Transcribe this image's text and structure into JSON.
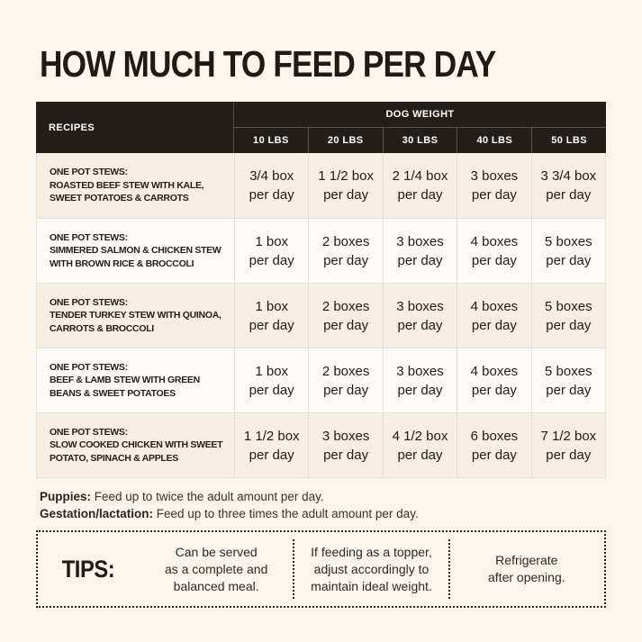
{
  "page": {
    "title": "HOW MUCH TO FEED PER DAY"
  },
  "table": {
    "recipes_header": "RECIPES",
    "dog_weight_header": "DOG WEIGHT",
    "weight_columns": [
      "10 LBS",
      "20 LBS",
      "30 LBS",
      "40 LBS",
      "50 LBS"
    ],
    "colors": {
      "header_bg": "#241d18",
      "alt_row_bg": "#f8eee2",
      "plain_row_bg": "#fdfcf9",
      "grid_line": "#e6e0d5",
      "page_bg": "#faf6ee"
    },
    "rows": [
      {
        "type_label": "ONE POT STEWS:",
        "name": "ROASTED BEEF STEW WITH KALE,\nSWEET POTATOES & CARROTS",
        "cells": [
          {
            "qty": "3/4 box",
            "freq": "per day"
          },
          {
            "qty": "1 1/2 box",
            "freq": "per day"
          },
          {
            "qty": "2 1/4 box",
            "freq": "per day"
          },
          {
            "qty": "3 boxes",
            "freq": "per day"
          },
          {
            "qty": "3 3/4 box",
            "freq": "per day"
          }
        ]
      },
      {
        "type_label": "ONE POT STEWS:",
        "name": "SIMMERED SALMON & CHICKEN STEW\nWITH BROWN RICE & BROCCOLI",
        "cells": [
          {
            "qty": "1 box",
            "freq": "per day"
          },
          {
            "qty": "2 boxes",
            "freq": "per day"
          },
          {
            "qty": "3 boxes",
            "freq": "per day"
          },
          {
            "qty": "4 boxes",
            "freq": "per day"
          },
          {
            "qty": "5 boxes",
            "freq": "per day"
          }
        ]
      },
      {
        "type_label": "ONE POT STEWS:",
        "name": "TENDER TURKEY STEW WITH QUINOA,\nCARROTS & BROCCOLI",
        "cells": [
          {
            "qty": "1 box",
            "freq": "per day"
          },
          {
            "qty": "2 boxes",
            "freq": "per day"
          },
          {
            "qty": "3 boxes",
            "freq": "per day"
          },
          {
            "qty": "4 boxes",
            "freq": "per day"
          },
          {
            "qty": "5 boxes",
            "freq": "per day"
          }
        ]
      },
      {
        "type_label": "ONE POT STEWS:",
        "name": "BEEF & LAMB STEW WITH GREEN\nBEANS & SWEET POTATOES",
        "cells": [
          {
            "qty": "1 box",
            "freq": "per day"
          },
          {
            "qty": "2 boxes",
            "freq": "per day"
          },
          {
            "qty": "3 boxes",
            "freq": "per day"
          },
          {
            "qty": "4 boxes",
            "freq": "per day"
          },
          {
            "qty": "5 boxes",
            "freq": "per day"
          }
        ]
      },
      {
        "type_label": "ONE POT STEWS:",
        "name": "SLOW COOKED CHICKEN WITH SWEET\nPOTATO, SPINACH & APPLES",
        "cells": [
          {
            "qty": "1 1/2 box",
            "freq": "per day"
          },
          {
            "qty": "3 boxes",
            "freq": "per day"
          },
          {
            "qty": "4 1/2 box",
            "freq": "per day"
          },
          {
            "qty": "6 boxes",
            "freq": "per day"
          },
          {
            "qty": "7 1/2 box",
            "freq": "per day"
          }
        ]
      }
    ]
  },
  "notes": {
    "puppies": {
      "label": "Puppies:",
      "text": " Feed up to twice the adult amount per day."
    },
    "gestation": {
      "label": "Gestation/lactation:",
      "text": " Feed up to three times the adult amount per day."
    }
  },
  "tips": {
    "label": "TIPS:",
    "items": [
      "Can be served\nas a complete and\nbalanced meal.",
      "If feeding as a topper,\nadjust accordingly to\nmaintain ideal weight.",
      "Refrigerate\nafter opening."
    ]
  }
}
